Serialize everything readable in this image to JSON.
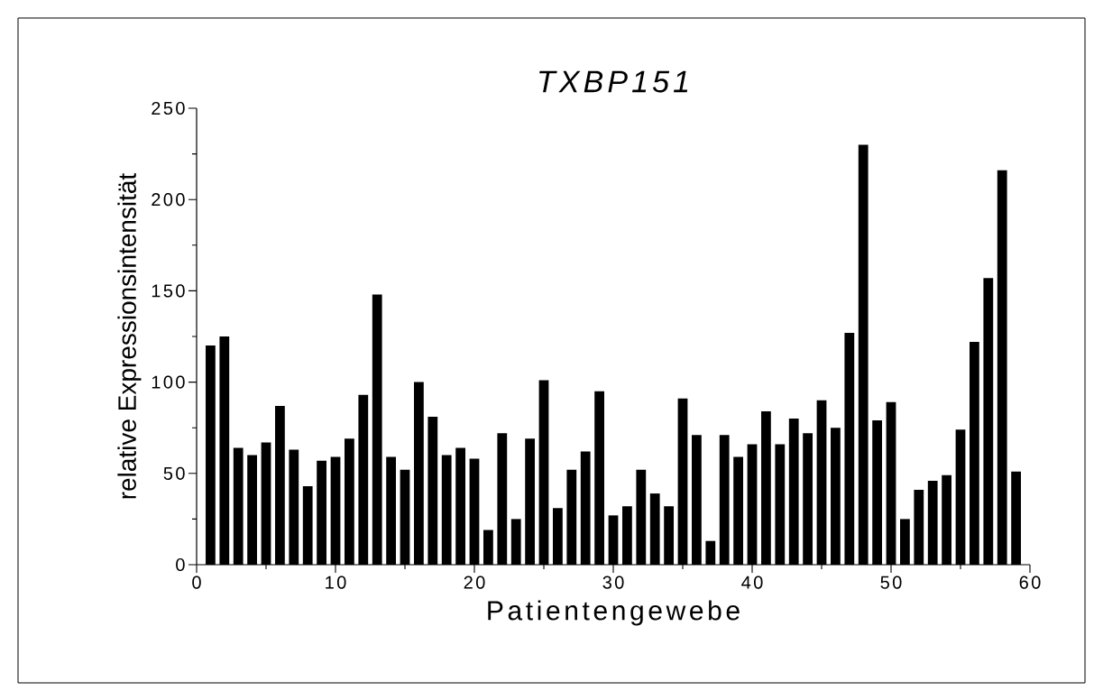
{
  "chart_data": {
    "type": "bar",
    "title": "TXBP151",
    "xlabel": "Patientengewebe",
    "ylabel": "relative Expressionsintensität",
    "color": "#000000",
    "x": [
      1,
      2,
      3,
      4,
      5,
      6,
      7,
      8,
      9,
      10,
      11,
      12,
      13,
      14,
      15,
      16,
      17,
      18,
      19,
      20,
      21,
      22,
      23,
      24,
      25,
      26,
      27,
      28,
      29,
      30,
      31,
      32,
      33,
      34,
      35,
      36,
      37,
      38,
      39,
      40,
      41,
      42,
      43,
      44,
      45,
      46,
      47,
      48,
      49,
      50,
      51,
      52,
      53,
      54,
      55,
      56,
      57,
      58,
      59
    ],
    "values": [
      120,
      125,
      64,
      60,
      67,
      87,
      63,
      43,
      57,
      59,
      69,
      93,
      148,
      59,
      52,
      100,
      81,
      60,
      64,
      58,
      19,
      72,
      25,
      69,
      101,
      31,
      52,
      62,
      95,
      27,
      32,
      52,
      39,
      32,
      91,
      71,
      13,
      71,
      59,
      66,
      84,
      66,
      80,
      72,
      90,
      75,
      127,
      230,
      79,
      89,
      25,
      41,
      46,
      49,
      74,
      122,
      157,
      216,
      51
    ],
    "xlim": [
      0,
      60
    ],
    "xticks": [
      0,
      10,
      20,
      30,
      40,
      50,
      60
    ],
    "ylim": [
      0,
      250
    ],
    "yticks": [
      0,
      50,
      100,
      150,
      200,
      250
    ],
    "grid": false
  }
}
